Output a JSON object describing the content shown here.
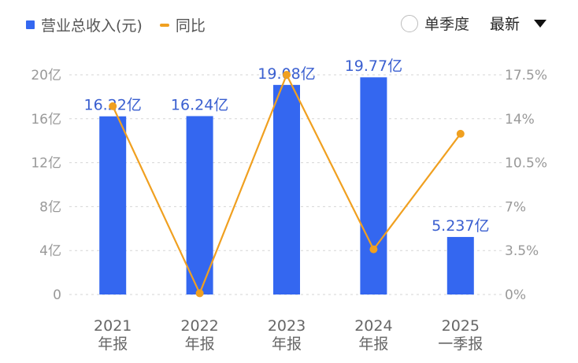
{
  "legend": {
    "bar_label": "营业总收入(元)",
    "line_label": "同比"
  },
  "controls": {
    "single_quarter_label": "单季度",
    "dropdown_label": "最新"
  },
  "colors": {
    "bar": "#3467f0",
    "line": "#f0a020",
    "data_label": "#3a5fd0"
  },
  "chart_data": {
    "type": "bar",
    "categories": [
      [
        "2021",
        "年报"
      ],
      [
        "2022",
        "年报"
      ],
      [
        "2023",
        "年报"
      ],
      [
        "2024",
        "年报"
      ],
      [
        "2025",
        "一季报"
      ]
    ],
    "series": [
      {
        "name": "营业总收入(元)",
        "type": "bar",
        "axis": "left",
        "values": [
          16.22,
          16.24,
          19.08,
          19.77,
          5.237
        ],
        "labels": [
          "16.22亿",
          "16.24亿",
          "19.08亿",
          "19.77亿",
          "5.237亿"
        ]
      },
      {
        "name": "同比",
        "type": "line",
        "axis": "right",
        "values": [
          15.0,
          0.1,
          17.5,
          3.6,
          12.8
        ]
      }
    ],
    "y_left": {
      "ylim": [
        0,
        20
      ],
      "ticks": [
        "0",
        "4亿",
        "8亿",
        "12亿",
        "16亿",
        "20亿"
      ],
      "tick_values": [
        0,
        4,
        8,
        12,
        16,
        20
      ]
    },
    "y_right": {
      "ylim": [
        0,
        17.5
      ],
      "ticks": [
        "0%",
        "3.5%",
        "7%",
        "10.5%",
        "14%",
        "17.5%"
      ],
      "tick_values": [
        0,
        3.5,
        7,
        10.5,
        14,
        17.5
      ]
    },
    "grid": true
  }
}
